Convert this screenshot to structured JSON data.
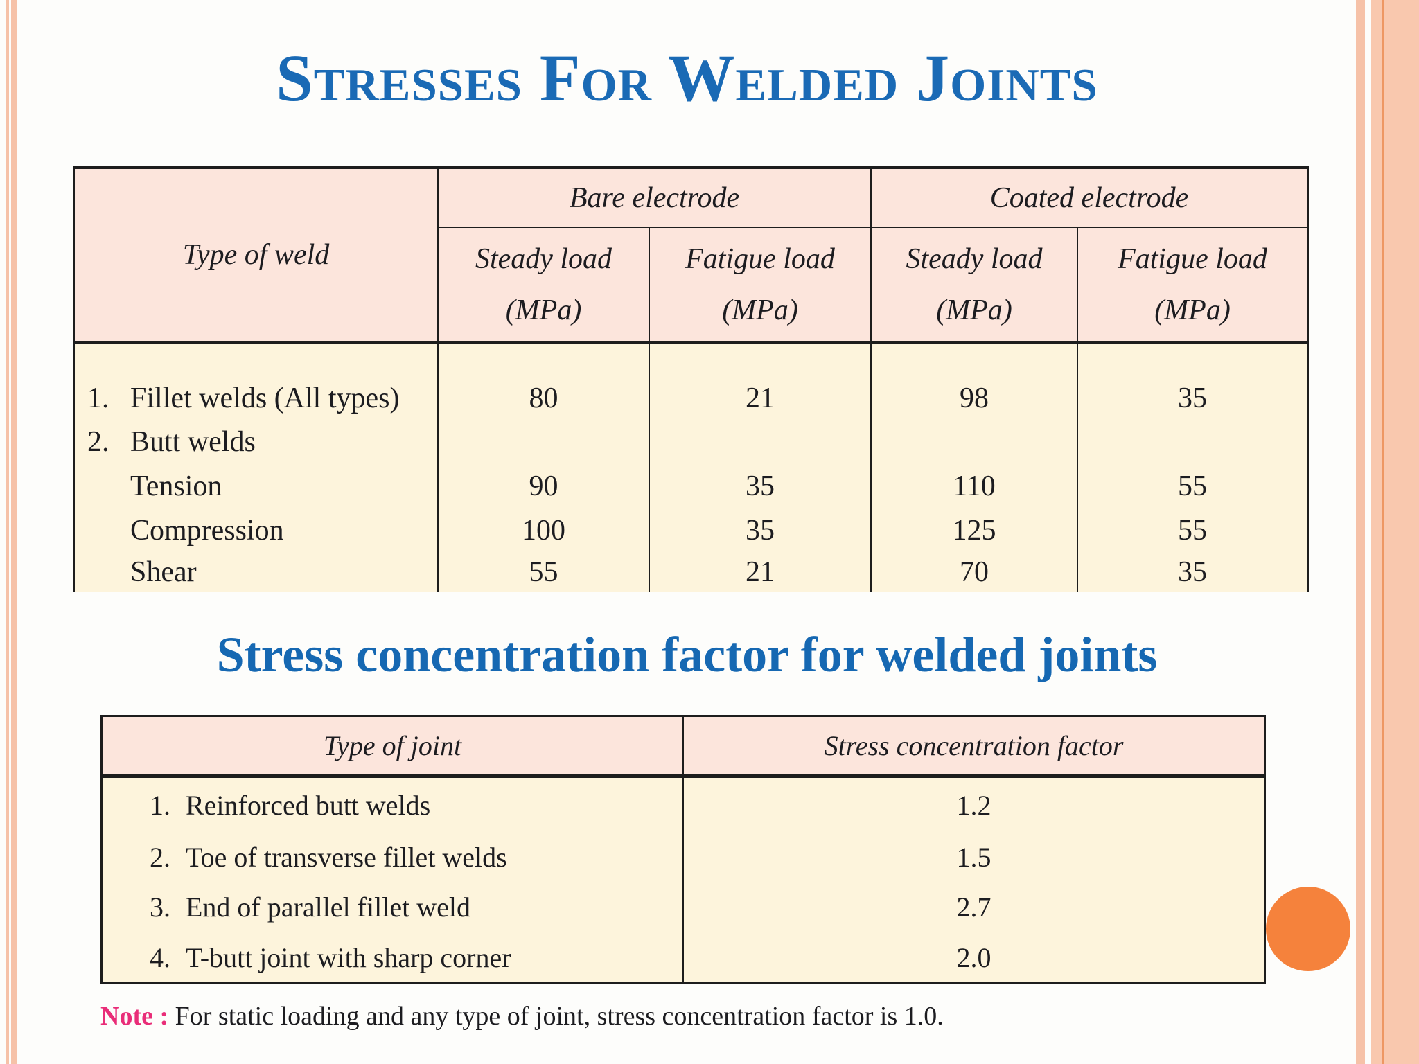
{
  "title": "Stresses For Welded Joints",
  "section_heading": "Stress concentration factor for welded joints",
  "table1": {
    "header": {
      "type_of_weld": "Type of weld",
      "bare_electrode": "Bare electrode",
      "coated_electrode": "Coated electrode",
      "subheaders": [
        {
          "line1": "Steady load",
          "line2": "(MPa)"
        },
        {
          "line1": "Fatigue load",
          "line2": "(MPa)"
        },
        {
          "line1": "Steady load",
          "line2": "(MPa)"
        },
        {
          "line1": "Fatigue load",
          "line2": "(MPa)"
        }
      ]
    },
    "rows": [
      {
        "num": "1.",
        "text": "Fillet welds (All types)",
        "bare_steady": "80",
        "bare_fatigue": "21",
        "coated_steady": "98",
        "coated_fatigue": "35"
      },
      {
        "num": "2.",
        "text": "Butt welds",
        "bare_steady": "",
        "bare_fatigue": "",
        "coated_steady": "",
        "coated_fatigue": ""
      },
      {
        "num": "",
        "text": "Tension",
        "bare_steady": "90",
        "bare_fatigue": "35",
        "coated_steady": "110",
        "coated_fatigue": "55"
      },
      {
        "num": "",
        "text": "Compression",
        "bare_steady": "100",
        "bare_fatigue": "35",
        "coated_steady": "125",
        "coated_fatigue": "55"
      },
      {
        "num": "",
        "text": "Shear",
        "bare_steady": "55",
        "bare_fatigue": "21",
        "coated_steady": "70",
        "coated_fatigue": "35"
      }
    ]
  },
  "table2": {
    "header": {
      "type_of_joint": "Type of joint",
      "factor": "Stress concentration factor"
    },
    "rows": [
      {
        "num": "1.",
        "text": "Reinforced butt welds",
        "factor": "1.2"
      },
      {
        "num": "2.",
        "text": "Toe of transverse fillet welds",
        "factor": "1.5"
      },
      {
        "num": "3.",
        "text": "End of parallel fillet weld",
        "factor": "2.7"
      },
      {
        "num": "4.",
        "text": "T-butt joint with sharp corner",
        "factor": "2.0"
      }
    ]
  },
  "note": {
    "label": "Note :",
    "text": "For static loading and any type of joint, stress concentration factor is 1.0."
  },
  "colors": {
    "slide_background": "#fdfdfb",
    "title_blue": "#1a6ab5",
    "heading_blue": "#1668b2",
    "table_header_pink": "#fce5dc",
    "table_body_cream": "#fdf4dc",
    "table_border_dark": "#1d1d1d",
    "text_dark": "#1c1c20",
    "note_magenta": "#e92d78",
    "circle_orange": "#f5823c",
    "side_stripe_salmon": "#f6c2a8",
    "side_panel_salmon": "#f9c8ae",
    "side_accent_orange": "#ee9763"
  }
}
